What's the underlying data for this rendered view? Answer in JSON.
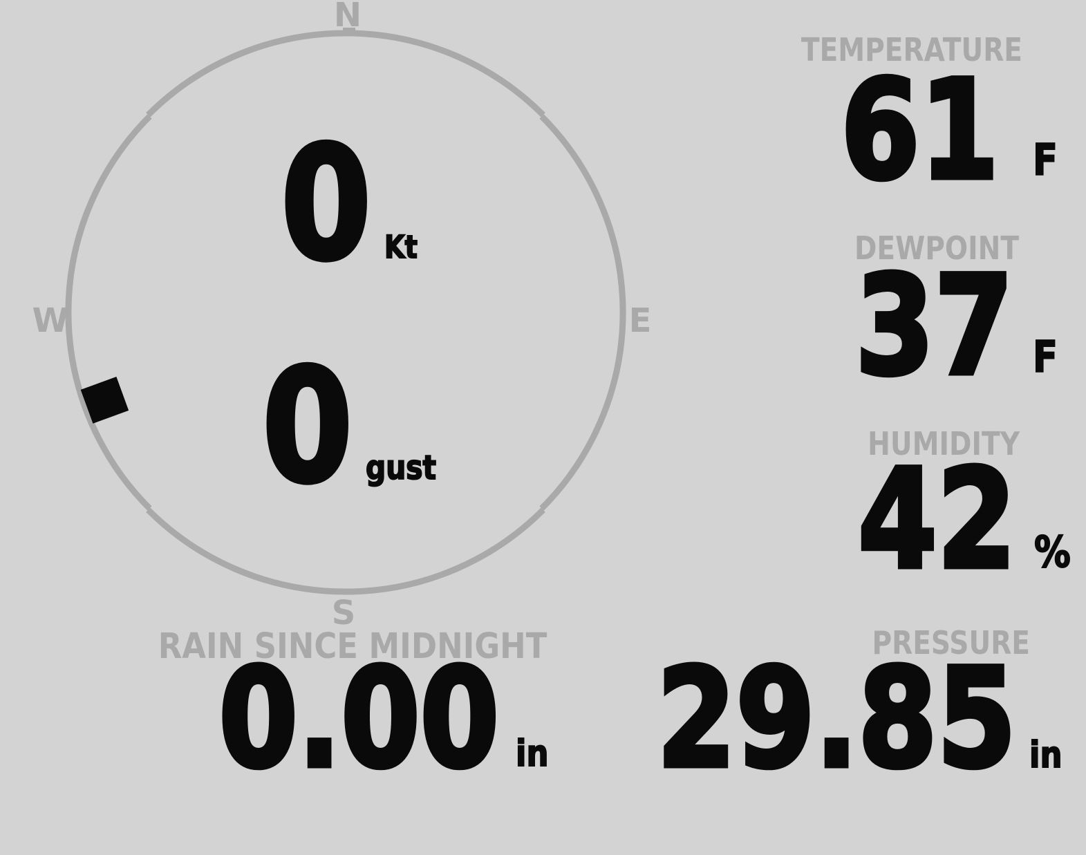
{
  "theme": {
    "background": "#d3d3d3",
    "muted": "#a9a9a9",
    "ink": "#0a0a0a"
  },
  "wind_gauge": {
    "compass_labels": {
      "n": "N",
      "e": "E",
      "s": "S",
      "w": "W"
    },
    "speed": {
      "value": "0",
      "unit": "Kt"
    },
    "gust": {
      "value": "0",
      "unit": "gust"
    },
    "direction_deg": 250
  },
  "readouts": {
    "temperature": {
      "label": "TEMPERATURE",
      "value": "61",
      "unit": "F"
    },
    "dewpoint": {
      "label": "DEWPOINT",
      "value": "37",
      "unit": "F"
    },
    "humidity": {
      "label": "HUMIDITY",
      "value": "42",
      "unit": "%"
    },
    "pressure": {
      "label": "PRESSURE",
      "value": "29.85",
      "unit": "in"
    },
    "rain_since_midnight": {
      "label": "RAIN SINCE MIDNIGHT",
      "value": "0.00",
      "unit": "in"
    }
  }
}
